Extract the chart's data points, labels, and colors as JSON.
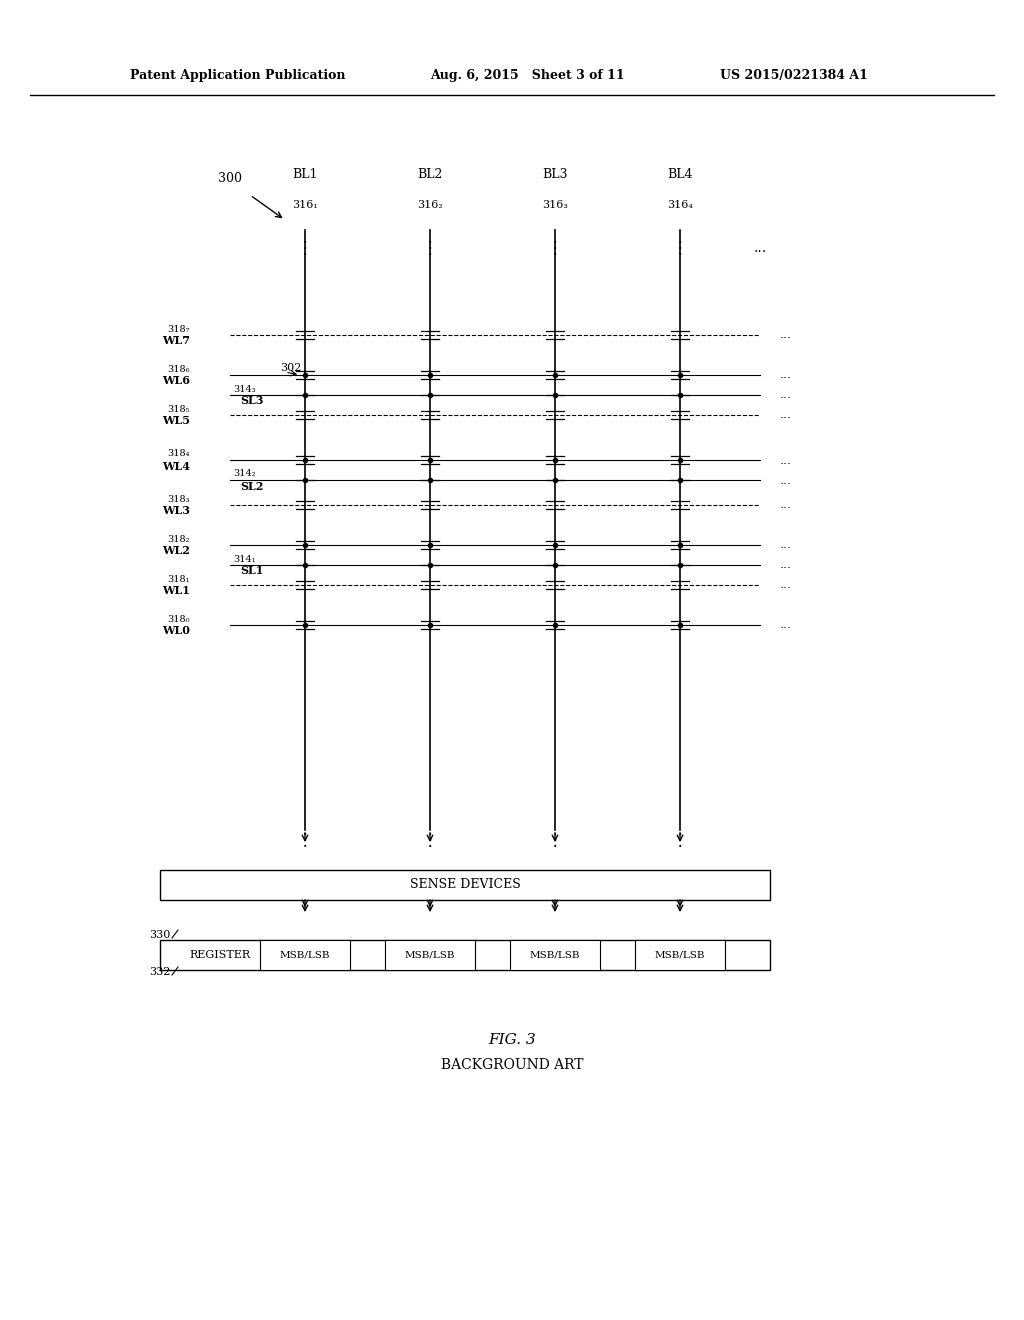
{
  "bg_color": "#ffffff",
  "header_left": "Patent Application Publication",
  "header_mid": "Aug. 6, 2015   Sheet 3 of 11",
  "header_right": "US 2015/0221384 A1",
  "fig_label": "FIG. 3",
  "fig_sublabel": "BACKGROUND ART",
  "diagram_label": "300",
  "bl_labels": [
    "BL1",
    "BL2",
    "BL3",
    "BL4"
  ],
  "bl_sublabels": [
    "316₁",
    "316₂",
    "316₃",
    "316₄"
  ],
  "wl_labels": [
    "WL7",
    "WL6",
    "WL5",
    "WL4",
    "WL3",
    "WL2",
    "WL1",
    "WL0"
  ],
  "wl_sublabels": [
    "318₇",
    "318₆",
    "318₅",
    "318₄",
    "318₃",
    "318₂",
    "318₁",
    "318₀"
  ],
  "sl_labels": [
    "SL3",
    "SL2",
    "SL1"
  ],
  "sl_sublabels": [
    "314₃",
    "314₂",
    "314₁"
  ],
  "sl_between_wl": [
    [
      "WL6",
      "WL5"
    ],
    [
      "WL4",
      "WL3"
    ],
    [
      "WL2",
      "WL1"
    ]
  ],
  "ref_302": "302",
  "sense_label": "SENSE DEVICES",
  "register_label": "REGISTER",
  "msblsb_label": "MSB/LSB",
  "ref_330": "330",
  "ref_332": "332",
  "n_bl_cols": 4,
  "n_wl_rows": 8
}
